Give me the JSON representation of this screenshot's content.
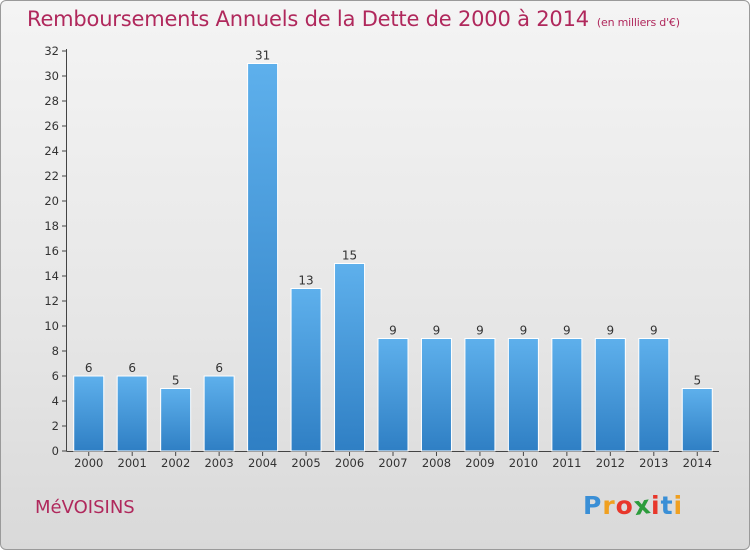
{
  "title": "Remboursements Annuels de la Dette de 2000 à 2014",
  "subtitle": "(en milliers d'€)",
  "municipality": "MéVOISINS",
  "logo": {
    "letters": [
      "P",
      "r",
      "o",
      "x",
      "i",
      "t",
      "i"
    ],
    "colors": [
      "#3a8fd6",
      "#f0a020",
      "#e8372b",
      "#2c9c3c",
      "#e8372b",
      "#3a8fd6",
      "#f0a020"
    ]
  },
  "chart_data": {
    "type": "bar",
    "categories": [
      "2000",
      "2001",
      "2002",
      "2003",
      "2004",
      "2005",
      "2006",
      "2007",
      "2008",
      "2009",
      "2010",
      "2011",
      "2012",
      "2013",
      "2014"
    ],
    "values": [
      6,
      6,
      5,
      6,
      31,
      13,
      15,
      9,
      9,
      9,
      9,
      9,
      9,
      9,
      5
    ],
    "ylim": [
      0,
      32
    ],
    "yticks": [
      0,
      2,
      4,
      6,
      8,
      10,
      12,
      14,
      16,
      18,
      20,
      22,
      24,
      26,
      28,
      30,
      32
    ],
    "grid": false,
    "legend": "none",
    "bar_color": "#4a9de0",
    "data_labels": true
  }
}
